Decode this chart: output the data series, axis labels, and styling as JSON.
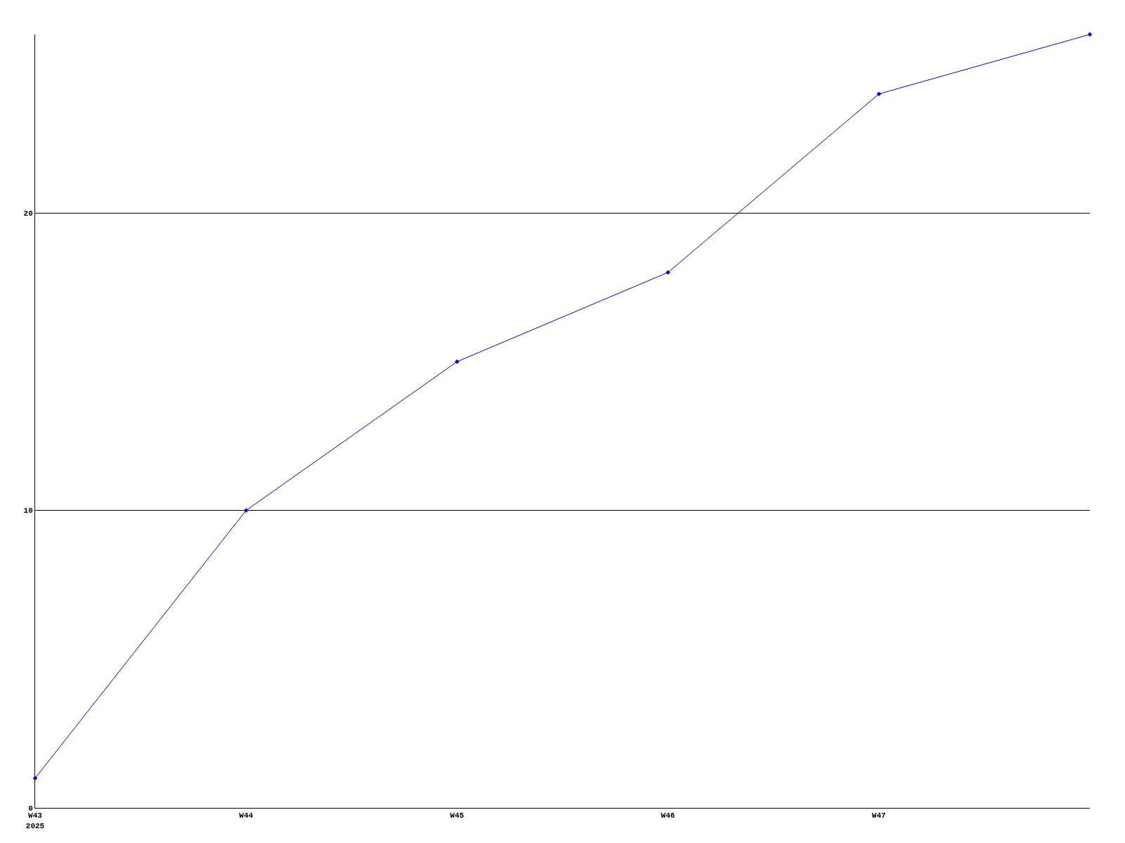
{
  "chart_data": {
    "type": "line",
    "categories": [
      "W43\n2025",
      "W44",
      "W45",
      "W46",
      "W47",
      null
    ],
    "series": [
      {
        "color": "#0000ff",
        "values": [
          1,
          10,
          15,
          18,
          24,
          26
        ]
      }
    ],
    "ylim": [
      0,
      26
    ],
    "yticks": [
      0,
      10,
      20
    ],
    "grid": "y",
    "marker": "diamond",
    "line_style": "solid"
  }
}
